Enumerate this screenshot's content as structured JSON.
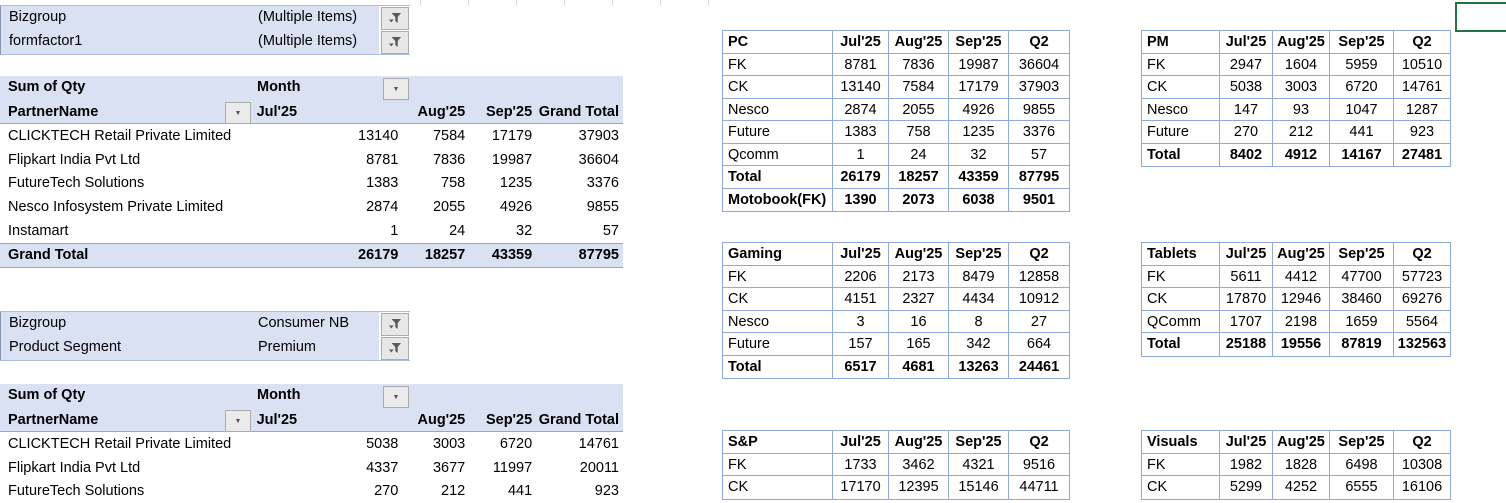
{
  "theme": {
    "header_fill": "#D9E1F2",
    "table_border": "#8EA9DB",
    "active_cell_border": "#217346"
  },
  "filter_block_top": {
    "fields": [
      {
        "label": "Bizgroup",
        "value": "(Multiple Items)",
        "icon": "filter-funnel-icon"
      },
      {
        "label": "formfactor1",
        "value": "(Multiple Items)",
        "icon": "filter-funnel-icon"
      }
    ]
  },
  "filter_block_bottom": {
    "fields": [
      {
        "label": "Bizgroup",
        "value": "Consumer NB",
        "icon": "filter-funnel-icon"
      },
      {
        "label": "Product Segment",
        "value": "Premium",
        "icon": "filter-funnel-icon"
      }
    ]
  },
  "pivot1": {
    "measure_label": "Sum of Qty",
    "column_field_label": "Month",
    "row_field_label": "PartnerName",
    "column_headers": [
      "Jul'25",
      "Aug'25",
      "Sep'25",
      "Grand Total"
    ],
    "rows": [
      {
        "name": "CLICKTECH Retail Private Limited",
        "values": [
          "13140",
          "7584",
          "17179",
          "37903"
        ]
      },
      {
        "name": "Flipkart India Pvt Ltd",
        "values": [
          "8781",
          "7836",
          "19987",
          "36604"
        ]
      },
      {
        "name": "FutureTech Solutions",
        "values": [
          "1383",
          "758",
          "1235",
          "3376"
        ]
      },
      {
        "name": "Nesco Infosystem Private Limited",
        "values": [
          "2874",
          "2055",
          "4926",
          "9855"
        ]
      },
      {
        "name": "Instamart",
        "values": [
          "1",
          "24",
          "32",
          "57"
        ]
      }
    ],
    "grand_total": {
      "name": "Grand Total",
      "values": [
        "26179",
        "18257",
        "43359",
        "87795"
      ]
    }
  },
  "pivot2": {
    "measure_label": "Sum of Qty",
    "column_field_label": "Month",
    "row_field_label": "PartnerName",
    "column_headers": [
      "Jul'25",
      "Aug'25",
      "Sep'25",
      "Grand Total"
    ],
    "rows": [
      {
        "name": "CLICKTECH Retail Private Limited",
        "values": [
          "5038",
          "3003",
          "6720",
          "14761"
        ]
      },
      {
        "name": "Flipkart India Pvt Ltd",
        "values": [
          "4337",
          "3677",
          "11997",
          "20011"
        ]
      },
      {
        "name": "FutureTech Solutions",
        "values": [
          "270",
          "212",
          "441",
          "923"
        ]
      }
    ]
  },
  "summary_tables": [
    {
      "title": "PC",
      "columns": [
        "Jul'25",
        "Aug'25",
        "Sep'25",
        "Q2"
      ],
      "rows": [
        {
          "label": "FK",
          "values": [
            "8781",
            "7836",
            "19987",
            "36604"
          ],
          "bold": false
        },
        {
          "label": "CK",
          "values": [
            "13140",
            "7584",
            "17179",
            "37903"
          ],
          "bold": false
        },
        {
          "label": "Nesco",
          "values": [
            "2874",
            "2055",
            "4926",
            "9855"
          ],
          "bold": false
        },
        {
          "label": "Future",
          "values": [
            "1383",
            "758",
            "1235",
            "3376"
          ],
          "bold": false
        },
        {
          "label": "Qcomm",
          "values": [
            "1",
            "24",
            "32",
            "57"
          ],
          "bold": false
        },
        {
          "label": "Total",
          "values": [
            "26179",
            "18257",
            "43359",
            "87795"
          ],
          "bold": true
        },
        {
          "label": "Motobook(FK)",
          "values": [
            "1390",
            "2073",
            "6038",
            "9501"
          ],
          "bold": true
        }
      ]
    },
    {
      "title": "Gaming",
      "columns": [
        "Jul'25",
        "Aug'25",
        "Sep'25",
        "Q2"
      ],
      "rows": [
        {
          "label": "FK",
          "values": [
            "2206",
            "2173",
            "8479",
            "12858"
          ],
          "bold": false
        },
        {
          "label": "CK",
          "values": [
            "4151",
            "2327",
            "4434",
            "10912"
          ],
          "bold": false
        },
        {
          "label": "Nesco",
          "values": [
            "3",
            "16",
            "8",
            "27"
          ],
          "bold": false
        },
        {
          "label": "Future",
          "values": [
            "157",
            "165",
            "342",
            "664"
          ],
          "bold": false
        },
        {
          "label": "Total",
          "values": [
            "6517",
            "4681",
            "13263",
            "24461"
          ],
          "bold": true
        }
      ]
    },
    {
      "title": "S&P",
      "columns": [
        "Jul'25",
        "Aug'25",
        "Sep'25",
        "Q2"
      ],
      "rows": [
        {
          "label": "FK",
          "values": [
            "1733",
            "3462",
            "4321",
            "9516"
          ],
          "bold": false
        },
        {
          "label": "CK",
          "values": [
            "17170",
            "12395",
            "15146",
            "44711"
          ],
          "bold": false
        }
      ]
    },
    {
      "title": "PM",
      "columns": [
        "Jul'25",
        "Aug'25",
        "Sep'25",
        "Q2"
      ],
      "rows": [
        {
          "label": "FK",
          "values": [
            "2947",
            "1604",
            "5959",
            "10510"
          ],
          "bold": false
        },
        {
          "label": "CK",
          "values": [
            "5038",
            "3003",
            "6720",
            "14761"
          ],
          "bold": false
        },
        {
          "label": "Nesco",
          "values": [
            "147",
            "93",
            "1047",
            "1287"
          ],
          "bold": false
        },
        {
          "label": "Future",
          "values": [
            "270",
            "212",
            "441",
            "923"
          ],
          "bold": false
        },
        {
          "label": "Total",
          "values": [
            "8402",
            "4912",
            "14167",
            "27481"
          ],
          "bold": true
        }
      ]
    },
    {
      "title": "Tablets",
      "columns": [
        "Jul'25",
        "Aug'25",
        "Sep'25",
        "Q2"
      ],
      "rows": [
        {
          "label": "FK",
          "values": [
            "5611",
            "4412",
            "47700",
            "57723"
          ],
          "bold": false
        },
        {
          "label": "CK",
          "values": [
            "17870",
            "12946",
            "38460",
            "69276"
          ],
          "bold": false
        },
        {
          "label": "QComm",
          "values": [
            "1707",
            "2198",
            "1659",
            "5564"
          ],
          "bold": false
        },
        {
          "label": "Total",
          "values": [
            "25188",
            "19556",
            "87819",
            "132563"
          ],
          "bold": true
        }
      ]
    },
    {
      "title": "Visuals",
      "columns": [
        "Jul'25",
        "Aug'25",
        "Sep'25",
        "Q2"
      ],
      "rows": [
        {
          "label": "FK",
          "values": [
            "1982",
            "1828",
            "6498",
            "10308"
          ],
          "bold": false
        },
        {
          "label": "CK",
          "values": [
            "5299",
            "4252",
            "6555",
            "16106"
          ],
          "bold": false
        }
      ]
    }
  ]
}
